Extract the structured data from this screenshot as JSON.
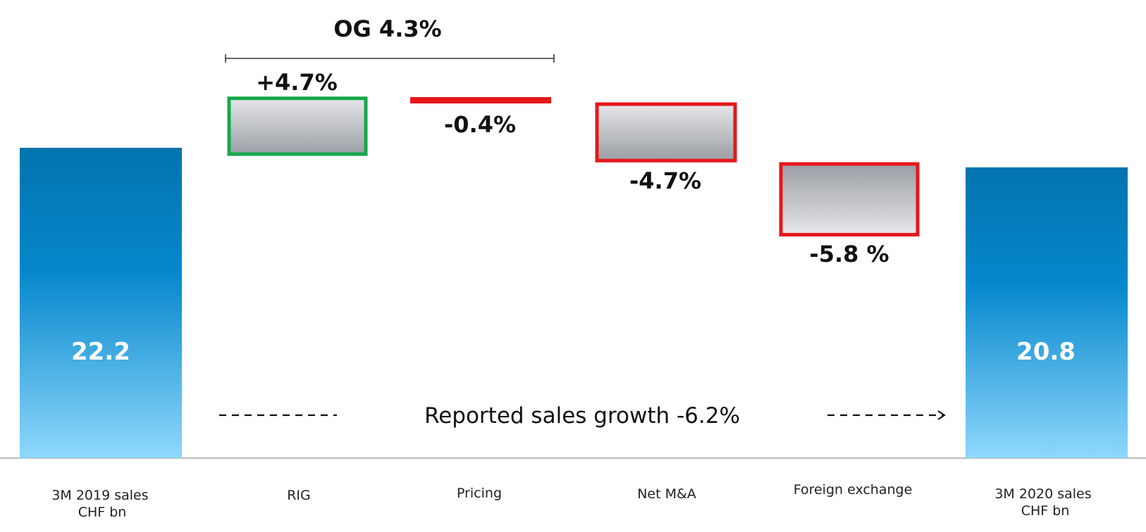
{
  "chart_data": {
    "type": "bar",
    "subtype": "waterfall",
    "categories": [
      [
        "3M 2019 sales",
        "CHF bn"
      ],
      [
        "RIG"
      ],
      [
        "Pricing"
      ],
      [
        "Net M&A"
      ],
      [
        "Foreign exchange"
      ],
      [
        "3M 2020 sales",
        "CHF bn"
      ]
    ],
    "start": {
      "value": 22.2,
      "label": "22.2"
    },
    "end": {
      "value": 20.8,
      "label": "20.8"
    },
    "steps": [
      {
        "value": 4.7,
        "label": "+4.7%",
        "direction": "up"
      },
      {
        "value": -0.4,
        "label": "-0.4%",
        "direction": "down"
      },
      {
        "value": -4.7,
        "label": "-4.7%",
        "direction": "down"
      },
      {
        "value": -5.8,
        "label": "-5.8 %",
        "direction": "down"
      }
    ],
    "bracket": {
      "label": "OG 4.3%",
      "from_category": 1,
      "to_category": 2
    },
    "footer_note": "Reported sales growth -6.2%",
    "colors": {
      "total_bar_top": "#0374ae",
      "total_bar_mid": "#0587cc",
      "total_bar_bottom": "#8fd8fc",
      "increase_border": "#15a84b",
      "decrease_border": "#e5171b",
      "delta_fill_light": "#e6e7e9",
      "delta_fill_dark": "#9a9ea4",
      "baseline": "#a6a6a6"
    }
  }
}
